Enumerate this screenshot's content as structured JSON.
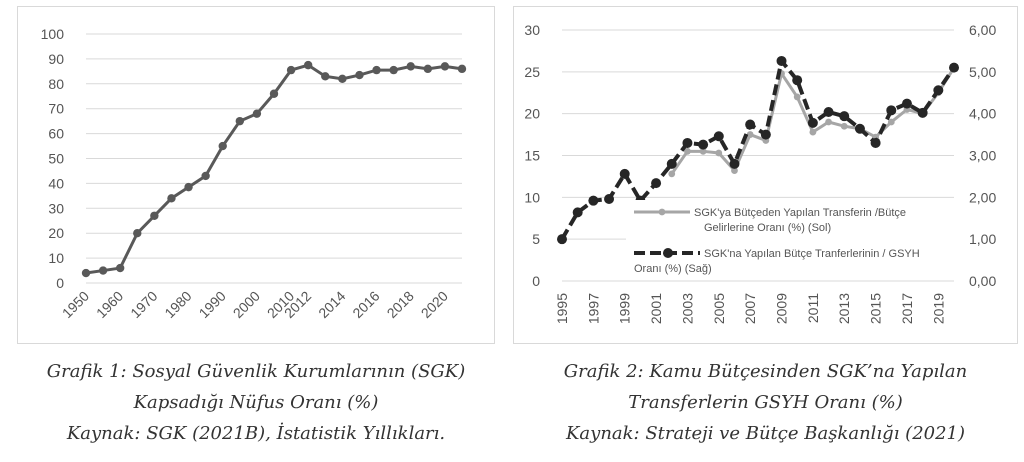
{
  "colors": {
    "left_line": "#595959",
    "right_left_series": "#a6a6a6",
    "right_right_series": "#262626",
    "grid": "#d9d9d9",
    "axis_text": "#555555"
  },
  "chart_data": [
    {
      "type": "line",
      "title": "",
      "xlabel": "",
      "ylabel": "",
      "x": [
        1950,
        1955,
        1960,
        1965,
        1970,
        1975,
        1980,
        1985,
        1990,
        1995,
        2000,
        2005,
        2010,
        2012,
        2013,
        2014,
        2015,
        2016,
        2017,
        2018,
        2019,
        2020,
        2021
      ],
      "x_tick_labels": [
        "1950",
        "1960",
        "1970",
        "1980",
        "1990",
        "2000",
        "2010",
        "2012",
        "2014",
        "2016",
        "2018",
        "2020"
      ],
      "ylim": [
        0,
        100
      ],
      "y_ticks": [
        "0",
        "10",
        "20",
        "30",
        "40",
        "50",
        "60",
        "70",
        "80",
        "90",
        "100"
      ],
      "series": [
        {
          "values": [
            4,
            5,
            6,
            20,
            27,
            34,
            38.5,
            43,
            55,
            65,
            68,
            76,
            85.5,
            87.5,
            83,
            82,
            83.5,
            85.5,
            85.5,
            87,
            86,
            87,
            86
          ]
        }
      ],
      "grid": true,
      "legend": "none"
    },
    {
      "type": "line",
      "title": "",
      "x": [
        1995,
        1996,
        1997,
        1998,
        1999,
        2000,
        2001,
        2002,
        2003,
        2004,
        2005,
        2006,
        2007,
        2008,
        2009,
        2010,
        2011,
        2012,
        2013,
        2014,
        2015,
        2016,
        2017,
        2018,
        2019,
        2020
      ],
      "x_tick_labels": [
        "1995",
        "1997",
        "1999",
        "2001",
        "2003",
        "2005",
        "2007",
        "2009",
        "2011",
        "2013",
        "2015",
        "2017",
        "2019"
      ],
      "ylim": [
        0,
        30
      ],
      "y_ticks": [
        "0",
        "5",
        "10",
        "15",
        "20",
        "25",
        "30"
      ],
      "y2lim": [
        0,
        6
      ],
      "y2_ticks": [
        "0,00",
        "1,00",
        "2,00",
        "3,00",
        "4,00",
        "5,00",
        "6,00"
      ],
      "series": [
        {
          "name": "SGK'ya Bütçeden Yapılan Transferin /Bütçe Gelirlerine Oranı (%) (Sol)",
          "axis": "left",
          "values": [
            null,
            null,
            null,
            null,
            null,
            null,
            null,
            12.8,
            15.5,
            15.5,
            15.3,
            13.2,
            17.5,
            16.8,
            24.8,
            22,
            17.8,
            19,
            18.5,
            18.2,
            17.2,
            19,
            20.5,
            20,
            22.5,
            25.5
          ]
        },
        {
          "name": "SGK'na Yapılan Bütçe Tranferlerinin / GSYH Oranı (%) (Sağ)",
          "axis": "right",
          "values": [
            1.0,
            1.64,
            1.92,
            1.96,
            2.56,
            1.92,
            2.34,
            2.8,
            3.3,
            3.26,
            3.46,
            2.8,
            3.74,
            3.5,
            5.26,
            4.8,
            3.78,
            4.04,
            3.94,
            3.64,
            3.3,
            4.08,
            4.24,
            4.02,
            4.56,
            5.1
          ]
        }
      ],
      "grid": true,
      "legend": "center-right"
    }
  ],
  "captions": {
    "left": [
      "Grafik 1: Sosyal Güvenlik Kurumlarının (SGK)",
      "Kapsadığı Nüfus Oranı (%)",
      "Kaynak: SGK (2021B), İstatistik Yıllıkları."
    ],
    "right": [
      "Grafik 2: Kamu Bütçesinden SGK’na Yapılan",
      "Transferlerin GSYH Oranı (%)",
      "Kaynak: Strateji ve Bütçe Başkanlığı (2021)"
    ]
  },
  "legend": {
    "entry1_lines": [
      "SGK'ya Bütçeden Yapılan Transferin /Bütçe",
      "Gelirlerine Oranı (%) (Sol)"
    ],
    "entry2_lines": [
      "SGK'na Yapılan Bütçe Tranferlerinin / GSYH",
      "Oranı (%) (Sağ)"
    ]
  }
}
